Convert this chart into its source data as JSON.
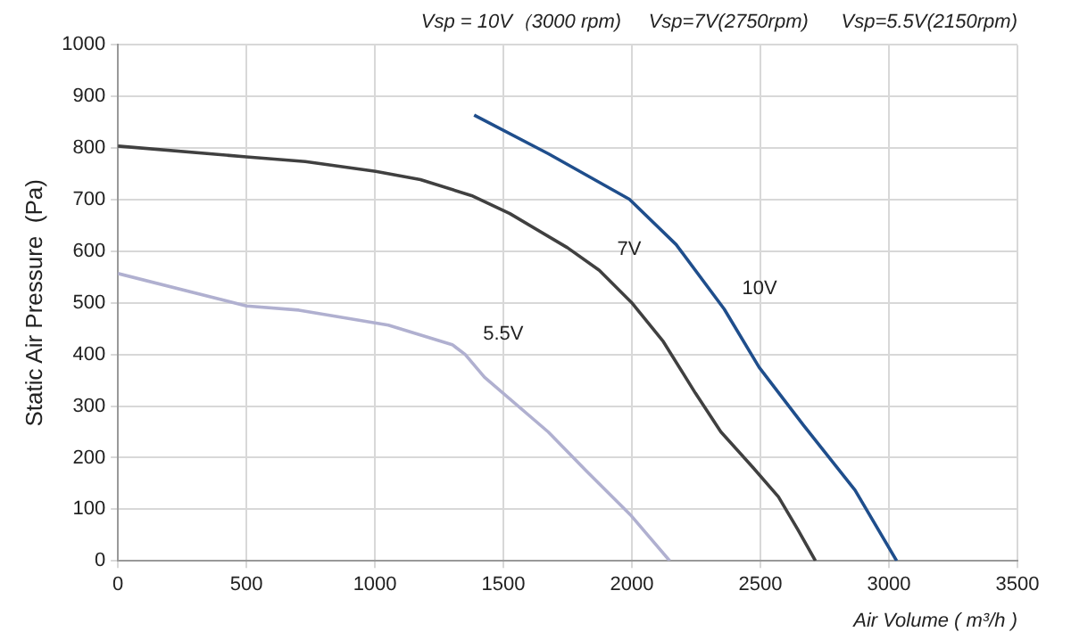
{
  "chart_data": {
    "type": "line",
    "title": "Vsp = 10V（3000 rpm)     Vsp=7V(2750rpm)      Vsp=5.5V(2150rpm)",
    "xlabel": "Air Volume ( m³/h )",
    "ylabel": "Static Air Pressure  (Pa)",
    "xlim": [
      0,
      3500
    ],
    "xticks": [
      0,
      500,
      1000,
      1500,
      2000,
      2500,
      3000,
      3500
    ],
    "ylim": [
      0,
      1000
    ],
    "yticks": [
      0,
      100,
      200,
      300,
      400,
      500,
      600,
      700,
      800,
      900,
      1000
    ],
    "grid": true,
    "legend": false,
    "marker": "none",
    "line_style": "solid",
    "series": [
      {
        "name": "10V",
        "color": "#1f4e8c",
        "x": [
          1386,
          1675,
          1990,
          2172,
          2359,
          2495,
          2669,
          2868,
          3030
        ],
        "values": [
          864,
          789,
          701,
          613,
          488,
          375,
          262,
          137,
          0
        ]
      },
      {
        "name": "7V",
        "color": "#404040",
        "x": [
          0,
          500,
          729,
          1003,
          1177,
          1376,
          1525,
          1749,
          1873,
          1998,
          2122,
          2247,
          2346,
          2471,
          2570,
          2645,
          2714
        ],
        "values": [
          804,
          783,
          774,
          755,
          739,
          708,
          673,
          607,
          563,
          501,
          425,
          325,
          250,
          181,
          124,
          61,
          0
        ]
      },
      {
        "name": "5.5V",
        "color": "#b0b0d0",
        "x": [
          0,
          500,
          704,
          1052,
          1301,
          1351,
          1426,
          1674,
          1823,
          1998,
          2147
        ],
        "values": [
          557,
          494,
          486,
          457,
          419,
          400,
          356,
          250,
          174,
          87,
          0
        ]
      }
    ]
  }
}
